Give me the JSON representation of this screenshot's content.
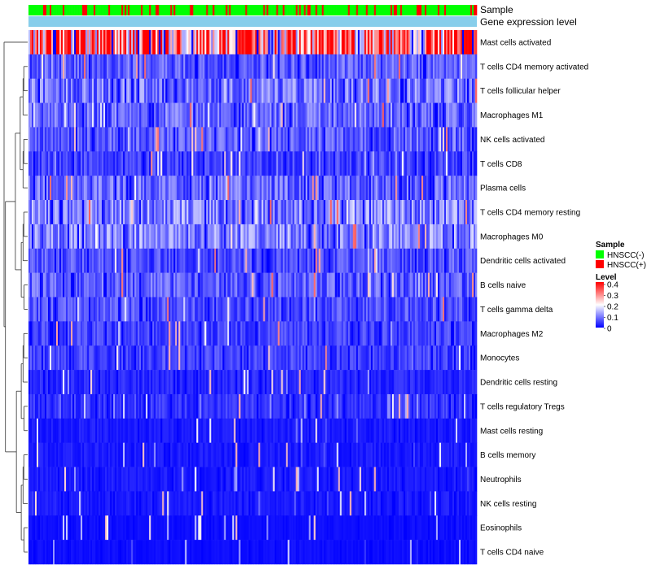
{
  "chart_data": {
    "type": "heatmap",
    "row_labels": [
      "Mast cells activated",
      "T cells CD4 memory activated",
      "T cells follicular helper",
      "Macrophages M1",
      "NK cells activated",
      "T cells CD8",
      "Plasma cells",
      "T cells CD4 memory resting",
      "Macrophages M0",
      "Dendritic cells activated",
      "B cells naive",
      "T cells gamma delta",
      "Macrophages M2",
      "Monocytes",
      "Dendritic cells resting",
      "T cells regulatory  Tregs",
      "Mast cells resting",
      "B cells memory",
      "Neutrophils",
      "NK cells resting",
      "Eosinophils",
      "T cells CD4 naive"
    ],
    "row_mean_level": [
      0.32,
      0.07,
      0.09,
      0.08,
      0.07,
      0.05,
      0.08,
      0.1,
      0.1,
      0.06,
      0.07,
      0.06,
      0.05,
      0.05,
      0.03,
      0.04,
      0.02,
      0.02,
      0.02,
      0.02,
      0.01,
      0.01
    ],
    "n_samples": 275,
    "annotation_tracks": [
      "Sample",
      "Gene expression level"
    ],
    "sample_groups": [
      "HNSCC(-)",
      "HNSCC(+)"
    ],
    "sample_group_fraction_positive": 0.2,
    "legend": {
      "sample_title": "Sample",
      "level_title": "Level",
      "level_ticks": [
        "0.4",
        "0.3",
        "0.2",
        "0.1",
        "0"
      ],
      "level_range": [
        0,
        0.4
      ]
    },
    "colors": {
      "low": "#0000ff",
      "mid": "#ffffff",
      "high": "#ff0000",
      "hnscc_neg": "#00ff00",
      "hnscc_pos": "#ff0000",
      "gene_expression_track": "#87ceeb",
      "dendrogram": "#333333"
    }
  }
}
